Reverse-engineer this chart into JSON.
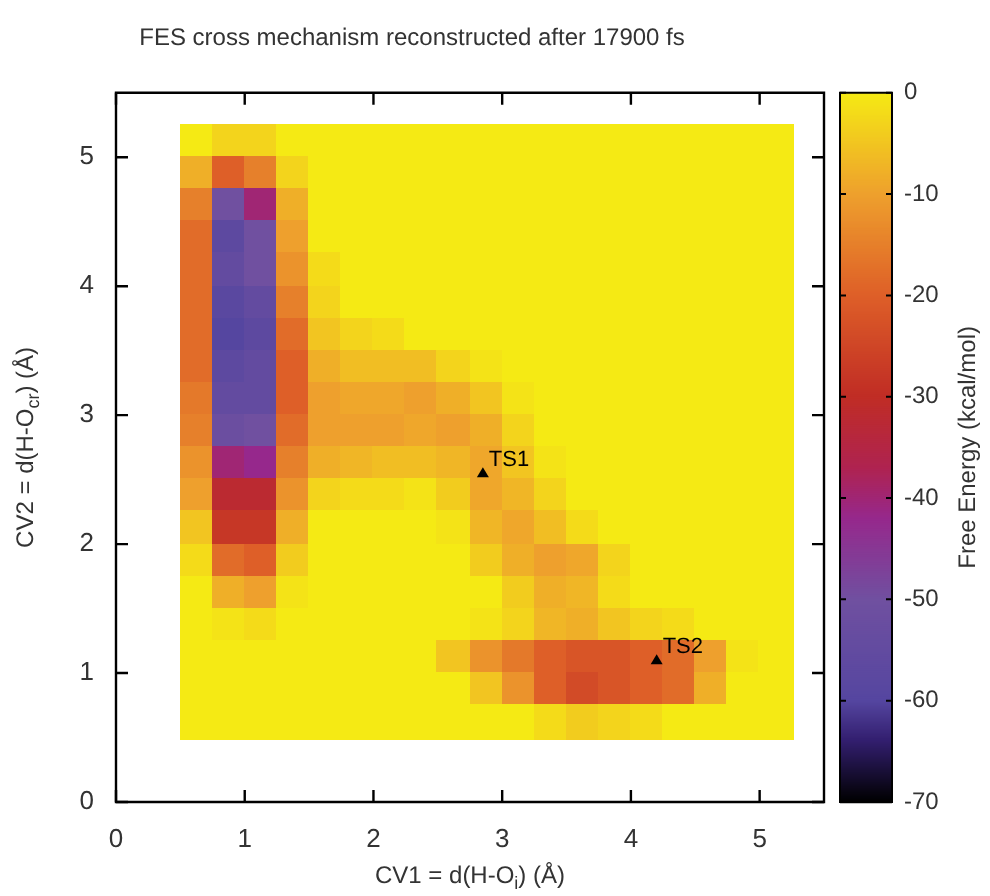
{
  "chart_data": {
    "type": "heatmap",
    "title": "FES cross mechanism reconstructed after 17900 fs",
    "xlabel": "CV1 = d(H-O$_{i}$) (Å)",
    "ylabel": "CV2 = d(H-O$_{cr}$) (Å)",
    "clabel": "Free Energy (kcal/mol)",
    "x": [
      0.625,
      0.875,
      1.125,
      1.375,
      1.625,
      1.875,
      2.125,
      2.375,
      2.625,
      2.875,
      3.125,
      3.375,
      3.625,
      3.875,
      4.125,
      4.375,
      4.625,
      4.875,
      5.125
    ],
    "y": [
      5.125,
      4.875,
      4.625,
      4.375,
      4.125,
      3.875,
      3.625,
      3.375,
      3.125,
      2.875,
      2.625,
      2.375,
      2.125,
      1.875,
      1.625,
      1.375,
      1.125,
      0.875,
      0.625
    ],
    "cells": [
      [
        0,
        -3,
        -3,
        0,
        0,
        0,
        0,
        0,
        0,
        0,
        0,
        0,
        0,
        0,
        0,
        0,
        0,
        0,
        0
      ],
      [
        -8,
        -20,
        -15,
        -3,
        0,
        0,
        0,
        0,
        0,
        0,
        0,
        0,
        0,
        0,
        0,
        0,
        0,
        0,
        0
      ],
      [
        -15,
        -50,
        -40,
        -8,
        0,
        0,
        0,
        0,
        0,
        0,
        0,
        0,
        0,
        0,
        0,
        0,
        0,
        0,
        0
      ],
      [
        -18,
        -57,
        -50,
        -10,
        0,
        0,
        0,
        0,
        0,
        0,
        0,
        0,
        0,
        0,
        0,
        0,
        0,
        0,
        0
      ],
      [
        -18,
        -55,
        -50,
        -12,
        -2,
        0,
        0,
        0,
        0,
        0,
        0,
        0,
        0,
        0,
        0,
        0,
        0,
        0,
        0
      ],
      [
        -18,
        -58,
        -55,
        -15,
        -3,
        0,
        0,
        0,
        0,
        0,
        0,
        0,
        0,
        0,
        0,
        0,
        0,
        0,
        0
      ],
      [
        -18,
        -60,
        -57,
        -18,
        -5,
        -3,
        -2,
        0,
        0,
        0,
        0,
        0,
        0,
        0,
        0,
        0,
        0,
        0,
        0
      ],
      [
        -18,
        -57,
        -55,
        -20,
        -8,
        -6,
        -6,
        -6,
        -3,
        -1,
        0,
        0,
        0,
        0,
        0,
        0,
        0,
        0,
        0
      ],
      [
        -16,
        -55,
        -55,
        -20,
        -10,
        -9,
        -9,
        -10,
        -8,
        -5,
        -1,
        0,
        0,
        0,
        0,
        0,
        0,
        0,
        0
      ],
      [
        -15,
        -52,
        -50,
        -18,
        -10,
        -10,
        -10,
        -9,
        -10,
        -8,
        -3,
        0,
        0,
        0,
        0,
        0,
        0,
        0,
        0
      ],
      [
        -12,
        -40,
        -42,
        -15,
        -8,
        -7,
        -6,
        -6,
        -7,
        -9,
        -5,
        -1,
        0,
        0,
        0,
        0,
        0,
        0,
        0
      ],
      [
        -10,
        -32,
        -32,
        -12,
        -3,
        -2,
        -2,
        -1,
        -4,
        -9,
        -7,
        -3,
        0,
        0,
        0,
        0,
        0,
        0,
        0
      ],
      [
        -5,
        -28,
        -28,
        -8,
        0,
        0,
        0,
        0,
        -1,
        -7,
        -9,
        -6,
        -2,
        0,
        0,
        0,
        0,
        0,
        0
      ],
      [
        -2,
        -18,
        -20,
        -4,
        0,
        0,
        0,
        0,
        0,
        -4,
        -8,
        -10,
        -9,
        -3,
        0,
        0,
        0,
        0,
        0
      ],
      [
        0,
        -8,
        -10,
        -1,
        0,
        0,
        0,
        0,
        0,
        0,
        -4,
        -8,
        -7,
        -2,
        0,
        0,
        0,
        0,
        0
      ],
      [
        0,
        -1,
        -2,
        0,
        0,
        0,
        0,
        0,
        0,
        -1,
        -3,
        -7,
        -8,
        -5,
        -3,
        -2,
        0,
        0,
        0
      ],
      [
        0,
        0,
        0,
        0,
        0,
        0,
        0,
        0,
        -5,
        -12,
        -16,
        -20,
        -22,
        -22,
        -20,
        -18,
        -10,
        -1,
        0
      ],
      [
        0,
        0,
        0,
        0,
        0,
        0,
        0,
        0,
        0,
        -5,
        -12,
        -20,
        -24,
        -22,
        -20,
        -18,
        -8,
        0,
        0
      ],
      [
        0,
        0,
        0,
        0,
        0,
        0,
        0,
        0,
        0,
        0,
        0,
        -2,
        -4,
        -3,
        -2,
        0,
        0,
        0,
        0
      ]
    ],
    "clim": [
      -70,
      0
    ],
    "cticks": [
      0,
      -10,
      -20,
      -30,
      -40,
      -50,
      -60,
      -70
    ],
    "xlim": [
      0,
      5.5
    ],
    "xticks": [
      0,
      1,
      2,
      3,
      4,
      5
    ],
    "ylim": [
      0,
      5.5
    ],
    "yticks": [
      0,
      1,
      2,
      3,
      4,
      5
    ],
    "annotations": [
      {
        "text": "TS1",
        "x": 2.85,
        "y": 2.55
      },
      {
        "text": "TS2",
        "x": 4.2,
        "y": 1.1
      }
    ]
  }
}
